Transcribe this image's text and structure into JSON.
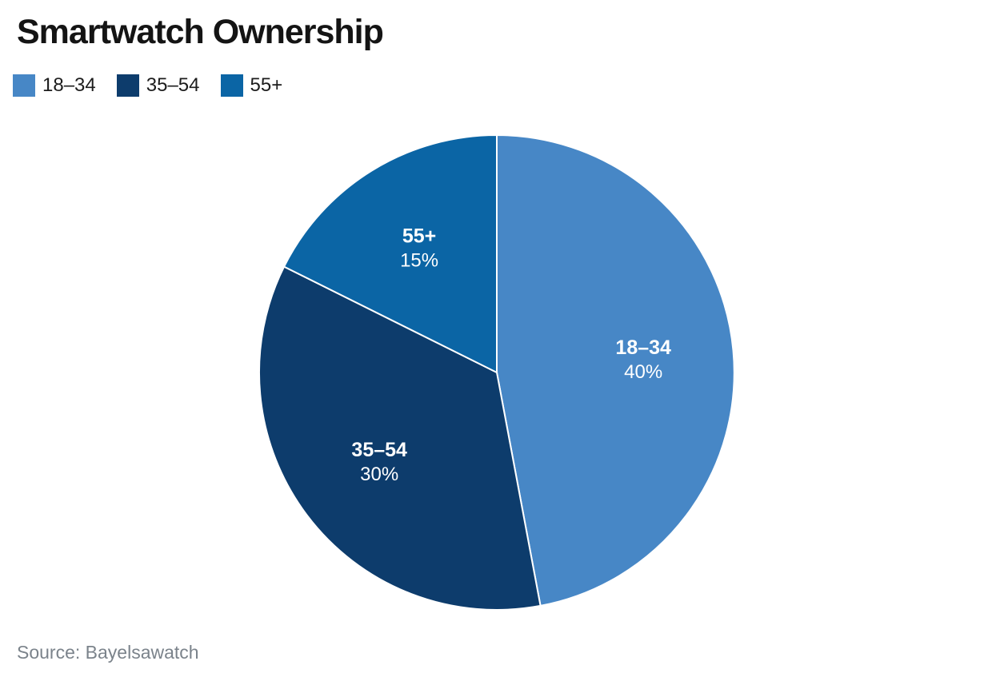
{
  "title": "Smartwatch Ownership",
  "source": "Source: Bayelsawatch",
  "chart_data": {
    "type": "pie",
    "title": "Smartwatch Ownership",
    "source_line": "Source: Bayelsawatch",
    "start_angle_deg": 0,
    "direction": "clockwise",
    "separator_color": "#ffffff",
    "label_text_color": "#ffffff",
    "legend_position": "top-left",
    "slices": [
      {
        "label": "18–34",
        "value": 40,
        "pct_label": "40%",
        "color": "#4787c6"
      },
      {
        "label": "35–54",
        "value": 30,
        "pct_label": "30%",
        "color": "#0d3c6c"
      },
      {
        "label": "55+",
        "value": 15,
        "pct_label": "15%",
        "color": "#0b65a5"
      }
    ]
  }
}
